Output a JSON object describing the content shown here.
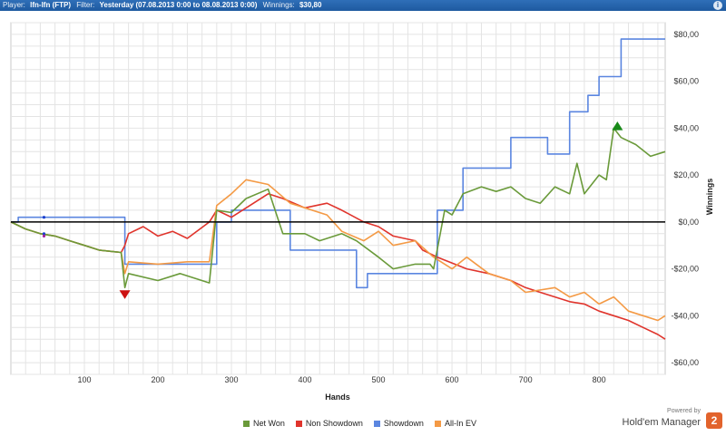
{
  "header": {
    "player_label": "Player:",
    "player_value": "lfn-lfn (FTP)",
    "filter_label": "Filter:",
    "filter_value": "Yesterday (07.08.2013 0:00 to 08.08.2013 0:00)",
    "winnings_label": "Winnings:",
    "winnings_value": "$30,80",
    "info_icon": "i"
  },
  "brand": {
    "powered_by": "Powered by",
    "name": "Hold'em Manager",
    "logo_text": "2"
  },
  "chart_data": {
    "type": "line",
    "xlabel": "Hands",
    "ylabel": "Winnings",
    "xlim": [
      0,
      890
    ],
    "ylim": [
      -65,
      85
    ],
    "x_ticks": [
      100,
      200,
      300,
      400,
      500,
      600,
      700,
      800
    ],
    "y_ticks": [
      80,
      60,
      40,
      20,
      0,
      -20,
      -40,
      -60
    ],
    "y_tick_labels": [
      "$80,00",
      "$60,00",
      "$40,00",
      "$20,00",
      "$0,00",
      "-$20,00",
      "-$40,00",
      "-$60,00"
    ],
    "grid": true,
    "legend_position": "bottom",
    "series": [
      {
        "name": "Net Won",
        "color": "#6a9a3a",
        "x": [
          0,
          20,
          40,
          60,
          80,
          100,
          120,
          150,
          155,
          160,
          200,
          230,
          270,
          280,
          300,
          320,
          350,
          370,
          400,
          420,
          450,
          470,
          500,
          520,
          550,
          570,
          575,
          590,
          600,
          615,
          640,
          660,
          680,
          700,
          720,
          740,
          760,
          770,
          780,
          800,
          810,
          820,
          830,
          850,
          870,
          890
        ],
        "y": [
          0,
          -3,
          -5,
          -6,
          -8,
          -10,
          -12,
          -13,
          -28,
          -22,
          -25,
          -22,
          -26,
          5,
          4,
          10,
          14,
          -5,
          -5,
          -8,
          -5,
          -8,
          -15,
          -20,
          -18,
          -18,
          -20,
          5,
          3,
          12,
          15,
          13,
          15,
          10,
          8,
          15,
          12,
          25,
          12,
          20,
          18,
          40,
          36,
          33,
          28,
          30
        ]
      },
      {
        "name": "Non Showdown",
        "color": "#e0342c",
        "x": [
          0,
          20,
          40,
          60,
          80,
          100,
          120,
          150,
          155,
          160,
          180,
          200,
          220,
          240,
          270,
          280,
          300,
          330,
          350,
          370,
          400,
          430,
          450,
          480,
          500,
          520,
          550,
          560,
          580,
          620,
          650,
          680,
          700,
          720,
          740,
          760,
          780,
          800,
          820,
          840,
          860,
          880,
          890
        ],
        "y": [
          0,
          -3,
          -5,
          -6,
          -8,
          -10,
          -12,
          -13,
          -10,
          -5,
          -2,
          -6,
          -4,
          -7,
          0,
          5,
          2,
          8,
          12,
          10,
          6,
          8,
          5,
          0,
          -2,
          -6,
          -8,
          -12,
          -15,
          -20,
          -22,
          -25,
          -28,
          -30,
          -32,
          -34,
          -35,
          -38,
          -40,
          -42,
          -45,
          -48,
          -50
        ]
      },
      {
        "name": "Showdown",
        "color": "#5b86e0",
        "x": [
          0,
          10,
          10,
          155,
          155,
          280,
          280,
          300,
          300,
          380,
          380,
          470,
          470,
          485,
          485,
          580,
          580,
          615,
          615,
          680,
          680,
          730,
          730,
          760,
          760,
          785,
          785,
          800,
          800,
          830,
          830,
          890
        ],
        "y": [
          0,
          0,
          2,
          2,
          -18,
          -18,
          0,
          0,
          5,
          5,
          -12,
          -12,
          -28,
          -28,
          -22,
          -22,
          5,
          5,
          23,
          23,
          36,
          36,
          29,
          29,
          47,
          47,
          54,
          54,
          62,
          62,
          78,
          78
        ]
      },
      {
        "name": "All-In EV",
        "color": "#f49a45",
        "x": [
          0,
          20,
          40,
          60,
          80,
          100,
          120,
          150,
          155,
          160,
          200,
          240,
          270,
          280,
          300,
          320,
          350,
          380,
          400,
          430,
          450,
          480,
          500,
          520,
          550,
          575,
          600,
          620,
          650,
          680,
          700,
          740,
          760,
          780,
          800,
          820,
          840,
          860,
          880,
          890
        ],
        "y": [
          0,
          -3,
          -5,
          -6,
          -8,
          -10,
          -12,
          -13,
          -22,
          -17,
          -18,
          -17,
          -17,
          7,
          12,
          18,
          16,
          8,
          6,
          3,
          -4,
          -8,
          -4,
          -10,
          -8,
          -15,
          -20,
          -15,
          -22,
          -25,
          -30,
          -28,
          -32,
          -30,
          -35,
          -32,
          -38,
          -40,
          -42,
          -40
        ]
      }
    ],
    "markers": [
      {
        "type": "down-triangle",
        "x": 155,
        "y": -31,
        "color": "#cc1111"
      },
      {
        "type": "up-triangle",
        "x": 825,
        "y": 41,
        "color": "#188a18"
      }
    ],
    "small_points": [
      {
        "x": 45,
        "y": 2,
        "color": "#1a3fcc"
      },
      {
        "x": 45,
        "y": -5,
        "color": "#1a3fcc"
      },
      {
        "x": 45,
        "y": -6,
        "color": "#a020a0"
      }
    ]
  }
}
